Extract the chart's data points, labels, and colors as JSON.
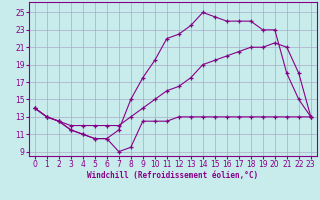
{
  "xlabel": "Windchill (Refroidissement éolien,°C)",
  "bg_color": "#c8ecec",
  "line_color": "#880088",
  "grid_color": "#aaaacc",
  "x_ticks": [
    0,
    1,
    2,
    3,
    4,
    5,
    6,
    7,
    8,
    9,
    10,
    11,
    12,
    13,
    14,
    15,
    16,
    17,
    18,
    19,
    20,
    21,
    22,
    23
  ],
  "y_ticks": [
    9,
    11,
    13,
    15,
    17,
    19,
    21,
    23,
    25
  ],
  "xlim": [
    -0.5,
    23.5
  ],
  "ylim": [
    8.5,
    26.2
  ],
  "series_flat_x": [
    0,
    1,
    2,
    3,
    4,
    5,
    6,
    7,
    8,
    9,
    10,
    11,
    12,
    13,
    14,
    15,
    16,
    17,
    18,
    19,
    20,
    21,
    22,
    23
  ],
  "series_flat_y": [
    14,
    13,
    12.5,
    11.5,
    11,
    10.5,
    10.5,
    9.0,
    9.5,
    12.5,
    12.5,
    12.5,
    13,
    13,
    13,
    13,
    13,
    13,
    13,
    13,
    13,
    13,
    13,
    13
  ],
  "series_peak_x": [
    0,
    1,
    2,
    3,
    4,
    5,
    6,
    7,
    8,
    9,
    10,
    11,
    12,
    13,
    14,
    15,
    16,
    17,
    18,
    19,
    20,
    21,
    22,
    23
  ],
  "series_peak_y": [
    14,
    13,
    12.5,
    11.5,
    11,
    10.5,
    10.5,
    11.5,
    15,
    17.5,
    19.5,
    22,
    22.5,
    23.5,
    25,
    24.5,
    24,
    24,
    24,
    23,
    23,
    18,
    15,
    13
  ],
  "series_diag_x": [
    0,
    1,
    2,
    3,
    4,
    5,
    6,
    7,
    8,
    9,
    10,
    11,
    12,
    13,
    14,
    15,
    16,
    17,
    18,
    19,
    20,
    21,
    22,
    23
  ],
  "series_diag_y": [
    14,
    13,
    12.5,
    12,
    12,
    12,
    12,
    12,
    13,
    14,
    15,
    16,
    16.5,
    17.5,
    19,
    19.5,
    20,
    20.5,
    21,
    21,
    21.5,
    21,
    18,
    13
  ]
}
